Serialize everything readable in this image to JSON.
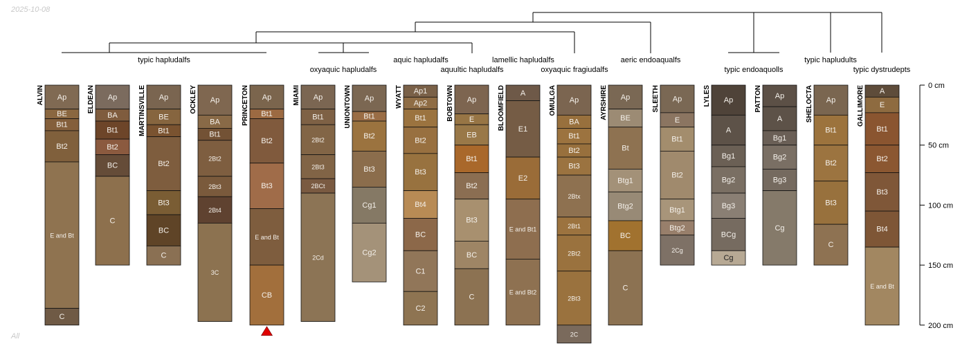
{
  "header": {
    "date": "2025-10-08"
  },
  "footer": {
    "subset": "All"
  },
  "chart_data": {
    "type": "soil-profile-sketch",
    "title": "",
    "depth_axis": {
      "ylim": [
        0,
        200
      ],
      "unit": "cm",
      "ticks": [
        0,
        50,
        100,
        150,
        200
      ],
      "labels": [
        "0 cm",
        "50 cm",
        "100 cm",
        "150 cm",
        "200 cm"
      ]
    },
    "profiles": [
      {
        "name": "ALVIN",
        "horizons": [
          {
            "name": "Ap",
            "top": 0,
            "bottom": 20,
            "color": "#806a53"
          },
          {
            "name": "BE",
            "top": 20,
            "bottom": 28,
            "color": "#8a6740"
          },
          {
            "name": "Bt1",
            "top": 28,
            "bottom": 38,
            "color": "#845f3b"
          },
          {
            "name": "Bt2",
            "top": 38,
            "bottom": 64,
            "color": "#80603c"
          },
          {
            "name": "E and Bt",
            "top": 64,
            "bottom": 186,
            "color": "#8f7350"
          },
          {
            "name": "C",
            "top": 186,
            "bottom": 200,
            "color": "#6f5a45"
          }
        ]
      },
      {
        "name": "ELDEAN",
        "horizons": [
          {
            "name": "Ap",
            "top": 0,
            "bottom": 20,
            "color": "#7b6b5e"
          },
          {
            "name": "BA",
            "top": 20,
            "bottom": 30,
            "color": "#7f5c3e"
          },
          {
            "name": "Bt1",
            "top": 30,
            "bottom": 45,
            "color": "#6d4529"
          },
          {
            "name": "Bt2",
            "top": 45,
            "bottom": 58,
            "color": "#8b5a3f"
          },
          {
            "name": "BC",
            "top": 58,
            "bottom": 76,
            "color": "#654c38"
          },
          {
            "name": "C",
            "top": 76,
            "bottom": 150,
            "color": "#8d704d"
          }
        ]
      },
      {
        "name": "MARTINSVILLE",
        "horizons": [
          {
            "name": "Ap",
            "top": 0,
            "bottom": 20,
            "color": "#7a6550"
          },
          {
            "name": "BE",
            "top": 20,
            "bottom": 33,
            "color": "#86653f"
          },
          {
            "name": "Bt1",
            "top": 33,
            "bottom": 43,
            "color": "#7a5330"
          },
          {
            "name": "Bt2",
            "top": 43,
            "bottom": 88,
            "color": "#7e5d3e"
          },
          {
            "name": "Bt3",
            "top": 88,
            "bottom": 108,
            "color": "#7a5d34"
          },
          {
            "name": "BC",
            "top": 108,
            "bottom": 134,
            "color": "#5f4427"
          },
          {
            "name": "C",
            "top": 134,
            "bottom": 150,
            "color": "#8a7053"
          }
        ]
      },
      {
        "name": "OCKLEY",
        "horizons": [
          {
            "name": "Ap",
            "top": 0,
            "bottom": 25,
            "color": "#7f6750"
          },
          {
            "name": "BA",
            "top": 25,
            "bottom": 36,
            "color": "#896a47"
          },
          {
            "name": "Bt1",
            "top": 36,
            "bottom": 46,
            "color": "#735235"
          },
          {
            "name": "2Bt2",
            "top": 46,
            "bottom": 76,
            "color": "#7e5e40"
          },
          {
            "name": "2Bt3",
            "top": 76,
            "bottom": 93,
            "color": "#7a5a3c"
          },
          {
            "name": "2Bt4",
            "top": 93,
            "bottom": 115,
            "color": "#5f4230"
          },
          {
            "name": "3C",
            "top": 115,
            "bottom": 197,
            "color": "#8c7250"
          }
        ]
      },
      {
        "name": "PRINCETON",
        "horizons": [
          {
            "name": "Ap",
            "top": 0,
            "bottom": 20,
            "color": "#7b654d"
          },
          {
            "name": "Bt1",
            "top": 20,
            "bottom": 28,
            "color": "#9c6a42"
          },
          {
            "name": "Bt2",
            "top": 28,
            "bottom": 65,
            "color": "#805a3d"
          },
          {
            "name": "Bt3",
            "top": 65,
            "bottom": 103,
            "color": "#a06c49"
          },
          {
            "name": "E and Bt",
            "top": 103,
            "bottom": 150,
            "color": "#7e5d3e"
          },
          {
            "name": "CB",
            "top": 150,
            "bottom": 200,
            "color": "#a26f3c"
          }
        ]
      },
      {
        "name": "MIAMI",
        "horizons": [
          {
            "name": "Ap",
            "top": 0,
            "bottom": 20,
            "color": "#7b6652"
          },
          {
            "name": "Bt1",
            "top": 20,
            "bottom": 33,
            "color": "#7e6145"
          },
          {
            "name": "2Bt2",
            "top": 33,
            "bottom": 58,
            "color": "#826546"
          },
          {
            "name": "2Bt3",
            "top": 58,
            "bottom": 78,
            "color": "#816446"
          },
          {
            "name": "2BCt",
            "top": 78,
            "bottom": 90,
            "color": "#7a5a41"
          },
          {
            "name": "2Cd",
            "top": 90,
            "bottom": 197,
            "color": "#8c7455"
          }
        ]
      },
      {
        "name": "UNIONTOWN",
        "horizons": [
          {
            "name": "Ap",
            "top": 0,
            "bottom": 22,
            "color": "#7b6752"
          },
          {
            "name": "Bt1",
            "top": 22,
            "bottom": 30,
            "color": "#9a6d45"
          },
          {
            "name": "Bt2",
            "top": 30,
            "bottom": 55,
            "color": "#9b733f"
          },
          {
            "name": "Bt3",
            "top": 55,
            "bottom": 85,
            "color": "#8b6d4c"
          },
          {
            "name": "Cg1",
            "top": 85,
            "bottom": 115,
            "color": "#857965"
          },
          {
            "name": "Cg2",
            "top": 115,
            "bottom": 164,
            "color": "#a49279"
          }
        ]
      },
      {
        "name": "WYATT",
        "horizons": [
          {
            "name": "Ap1",
            "top": 0,
            "bottom": 10,
            "color": "#7a6148"
          },
          {
            "name": "Ap2",
            "top": 10,
            "bottom": 20,
            "color": "#8f6d45"
          },
          {
            "name": "Bt1",
            "top": 20,
            "bottom": 35,
            "color": "#9b733f"
          },
          {
            "name": "Bt2",
            "top": 35,
            "bottom": 57,
            "color": "#987040"
          },
          {
            "name": "Bt3",
            "top": 57,
            "bottom": 88,
            "color": "#98723f"
          },
          {
            "name": "Bt4",
            "top": 88,
            "bottom": 111,
            "color": "#b88b55"
          },
          {
            "name": "BC",
            "top": 111,
            "bottom": 138,
            "color": "#8c6849"
          },
          {
            "name": "C1",
            "top": 138,
            "bottom": 172,
            "color": "#917659"
          },
          {
            "name": "C2",
            "top": 172,
            "bottom": 200,
            "color": "#8e7452"
          }
        ]
      },
      {
        "name": "BOBTOWN",
        "horizons": [
          {
            "name": "Ap",
            "top": 0,
            "bottom": 24,
            "color": "#7d6550"
          },
          {
            "name": "E",
            "top": 24,
            "bottom": 33,
            "color": "#977545"
          },
          {
            "name": "EB",
            "top": 33,
            "bottom": 50,
            "color": "#997848"
          },
          {
            "name": "Bt1",
            "top": 50,
            "bottom": 73,
            "color": "#a9682b"
          },
          {
            "name": "Bt2",
            "top": 73,
            "bottom": 95,
            "color": "#8b6e52"
          },
          {
            "name": "Bt3",
            "top": 95,
            "bottom": 130,
            "color": "#a8906f"
          },
          {
            "name": "BC",
            "top": 130,
            "bottom": 153,
            "color": "#9e8565"
          },
          {
            "name": "C",
            "top": 153,
            "bottom": 200,
            "color": "#8c7252"
          }
        ]
      },
      {
        "name": "BLOOMFIELD",
        "horizons": [
          {
            "name": "A",
            "top": 0,
            "bottom": 13,
            "color": "#6e5948"
          },
          {
            "name": "E1",
            "top": 13,
            "bottom": 60,
            "color": "#755c45"
          },
          {
            "name": "E2",
            "top": 60,
            "bottom": 95,
            "color": "#9a6c38"
          },
          {
            "name": "E and Bt1",
            "top": 95,
            "bottom": 145,
            "color": "#8e6e4f"
          },
          {
            "name": "E and Bt2",
            "top": 145,
            "bottom": 200,
            "color": "#8e7151"
          }
        ]
      },
      {
        "name": "OMULGA",
        "horizons": [
          {
            "name": "Ap",
            "top": 0,
            "bottom": 25,
            "color": "#7b6550"
          },
          {
            "name": "BA",
            "top": 25,
            "bottom": 36,
            "color": "#98703d"
          },
          {
            "name": "Bt1",
            "top": 36,
            "bottom": 49,
            "color": "#9c733f"
          },
          {
            "name": "Bt2",
            "top": 49,
            "bottom": 60,
            "color": "#98703d"
          },
          {
            "name": "Bt3",
            "top": 60,
            "bottom": 75,
            "color": "#9b7340"
          },
          {
            "name": "2Btx",
            "top": 75,
            "bottom": 110,
            "color": "#8e7150"
          },
          {
            "name": "2Bt1",
            "top": 110,
            "bottom": 125,
            "color": "#9c733f"
          },
          {
            "name": "2Bt2",
            "top": 125,
            "bottom": 155,
            "color": "#9a723e"
          },
          {
            "name": "2Bt3",
            "top": 155,
            "bottom": 200,
            "color": "#9a723e"
          },
          {
            "name": "2C",
            "top": 200,
            "bottom": 215,
            "color": "#7a6a5c"
          }
        ]
      },
      {
        "name": "AYRSHIRE",
        "horizons": [
          {
            "name": "Ap",
            "top": 0,
            "bottom": 20,
            "color": "#7a6854"
          },
          {
            "name": "BE",
            "top": 20,
            "bottom": 35,
            "color": "#9c8b74"
          },
          {
            "name": "Bt",
            "top": 35,
            "bottom": 70,
            "color": "#8e7251"
          },
          {
            "name": "Btg1",
            "top": 70,
            "bottom": 89,
            "color": "#a39178"
          },
          {
            "name": "Btg2",
            "top": 89,
            "bottom": 113,
            "color": "#988a76"
          },
          {
            "name": "BC",
            "top": 113,
            "bottom": 138,
            "color": "#a1722f"
          },
          {
            "name": "C",
            "top": 138,
            "bottom": 200,
            "color": "#8c7252"
          }
        ]
      },
      {
        "name": "SLEETH",
        "horizons": [
          {
            "name": "Ap",
            "top": 0,
            "bottom": 23,
            "color": "#7a6854"
          },
          {
            "name": "E",
            "top": 23,
            "bottom": 35,
            "color": "#8b7561"
          },
          {
            "name": "Bt1",
            "top": 35,
            "bottom": 55,
            "color": "#a38d6d"
          },
          {
            "name": "Bt2",
            "top": 55,
            "bottom": 95,
            "color": "#a08a6d"
          },
          {
            "name": "Btg1",
            "top": 95,
            "bottom": 113,
            "color": "#a8957a"
          },
          {
            "name": "Btg2",
            "top": 113,
            "bottom": 125,
            "color": "#987f6b"
          },
          {
            "name": "2Cg",
            "top": 125,
            "bottom": 150,
            "color": "#7e7166"
          }
        ]
      },
      {
        "name": "LYLES",
        "horizons": [
          {
            "name": "Ap",
            "top": 0,
            "bottom": 25,
            "color": "#4f4339"
          },
          {
            "name": "A",
            "top": 25,
            "bottom": 50,
            "color": "#5d5248"
          },
          {
            "name": "Bg1",
            "top": 50,
            "bottom": 68,
            "color": "#6b6055"
          },
          {
            "name": "Bg2",
            "top": 68,
            "bottom": 90,
            "color": "#7a6f63"
          },
          {
            "name": "Bg3",
            "top": 90,
            "bottom": 111,
            "color": "#8a7f74"
          },
          {
            "name": "BCg",
            "top": 111,
            "bottom": 138,
            "color": "#766b60"
          },
          {
            "name": "Cg",
            "top": 138,
            "bottom": 150,
            "color": "#b7a994"
          }
        ]
      },
      {
        "name": "PATTON",
        "horizons": [
          {
            "name": "Ap",
            "top": 0,
            "bottom": 18,
            "color": "#5c5046"
          },
          {
            "name": "A",
            "top": 18,
            "bottom": 38,
            "color": "#5d5248"
          },
          {
            "name": "Bg1",
            "top": 38,
            "bottom": 50,
            "color": "#6a5f56"
          },
          {
            "name": "Bg2",
            "top": 50,
            "bottom": 70,
            "color": "#7a6f64"
          },
          {
            "name": "Bg3",
            "top": 70,
            "bottom": 88,
            "color": "#756a5f"
          },
          {
            "name": "Cg",
            "top": 88,
            "bottom": 150,
            "color": "#857a6a"
          }
        ]
      },
      {
        "name": "SHELOCTA",
        "horizons": [
          {
            "name": "Ap",
            "top": 0,
            "bottom": 25,
            "color": "#7a6650"
          },
          {
            "name": "Bt1",
            "top": 25,
            "bottom": 50,
            "color": "#9c733d"
          },
          {
            "name": "Bt2",
            "top": 50,
            "bottom": 80,
            "color": "#9c7440"
          },
          {
            "name": "Bt3",
            "top": 80,
            "bottom": 116,
            "color": "#98713d"
          },
          {
            "name": "C",
            "top": 116,
            "bottom": 150,
            "color": "#8e7252"
          }
        ]
      },
      {
        "name": "GALLIMORE",
        "horizons": [
          {
            "name": "A",
            "top": 0,
            "bottom": 10,
            "color": "#5e4c3a"
          },
          {
            "name": "E",
            "top": 10,
            "bottom": 23,
            "color": "#8e6b40"
          },
          {
            "name": "Bt1",
            "top": 23,
            "bottom": 50,
            "color": "#8a5530"
          },
          {
            "name": "Bt2",
            "top": 50,
            "bottom": 73,
            "color": "#8b5731"
          },
          {
            "name": "Bt3",
            "top": 73,
            "bottom": 105,
            "color": "#7f5738"
          },
          {
            "name": "Bt4",
            "top": 105,
            "bottom": 135,
            "color": "#7e5636"
          },
          {
            "name": "E and Bt",
            "top": 135,
            "bottom": 200,
            "color": "#a28761"
          }
        ]
      }
    ],
    "taxonomy_labels": [
      "typic hapludalfs",
      "oxyaquic hapludalfs",
      "aquic hapludalfs",
      "aquultic hapludalfs",
      "lamellic hapludalfs",
      "oxyaquic fragiudalfs",
      "aeric endoaqualfs",
      "typic endoaquolls",
      "typic hapludults",
      "typic dystrudepts"
    ],
    "truncated_profile_marker": "PRINCETON"
  }
}
